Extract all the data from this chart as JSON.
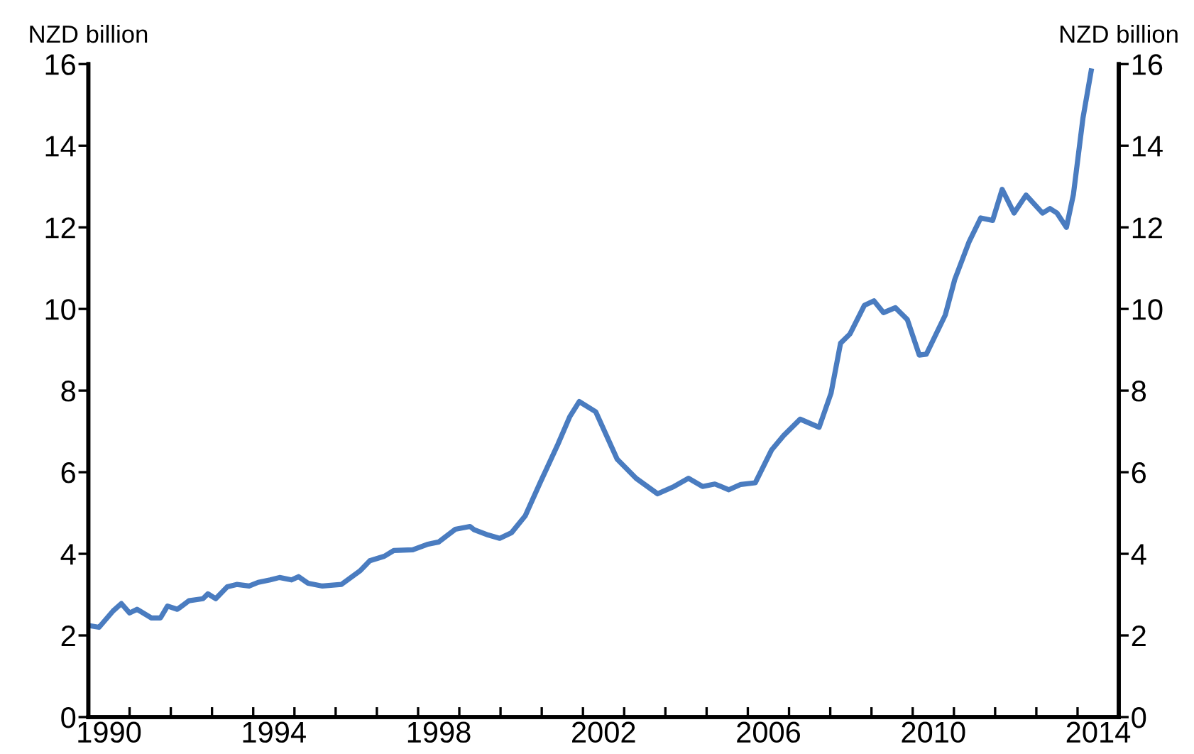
{
  "chart_data": {
    "type": "line",
    "ylabel": "NZD billion",
    "y2label": "NZD billion",
    "series": [
      {
        "color": "#4a7cc0",
        "x": [
          1990.03,
          1990.26,
          1990.6,
          1990.8,
          1991.0,
          1991.18,
          1991.53,
          1991.75,
          1991.92,
          1992.16,
          1992.44,
          1992.78,
          1992.9,
          1993.09,
          1993.37,
          1993.6,
          1993.9,
          1994.12,
          1994.41,
          1994.64,
          1994.93,
          1995.1,
          1995.33,
          1995.68,
          1996.14,
          1996.6,
          1996.83,
          1997.18,
          1997.41,
          1997.87,
          1998.22,
          1998.5,
          1998.9,
          1999.26,
          1999.36,
          1999.7,
          1999.98,
          2000.27,
          2000.6,
          2000.96,
          2001.39,
          2001.68,
          2001.91,
          2002.31,
          2002.83,
          2003.29,
          2003.81,
          2004.21,
          2004.56,
          2004.9,
          2005.2,
          2005.54,
          2005.83,
          2006.18,
          2006.58,
          2006.87,
          2007.27,
          2007.73,
          2008.02,
          2008.25,
          2008.48,
          2008.83,
          2009.06,
          2009.29,
          2009.58,
          2009.87,
          2010.16,
          2010.33,
          2010.79,
          2011.02,
          2011.37,
          2011.65,
          2011.94,
          2012.17,
          2012.46,
          2012.75,
          2013.15,
          2013.33,
          2013.5,
          2013.73,
          2013.9,
          2014.13,
          2014.33
        ],
        "values": [
          2.24,
          2.2,
          2.6,
          2.78,
          2.55,
          2.64,
          2.43,
          2.43,
          2.72,
          2.64,
          2.85,
          2.9,
          3.02,
          2.9,
          3.19,
          3.25,
          3.21,
          3.3,
          3.36,
          3.42,
          3.36,
          3.44,
          3.28,
          3.21,
          3.25,
          3.59,
          3.83,
          3.94,
          4.08,
          4.1,
          4.23,
          4.29,
          4.6,
          4.67,
          4.59,
          4.46,
          4.38,
          4.52,
          4.93,
          5.74,
          6.68,
          7.36,
          7.73,
          7.48,
          6.32,
          5.85,
          5.47,
          5.65,
          5.85,
          5.65,
          5.71,
          5.57,
          5.7,
          5.74,
          6.55,
          6.9,
          7.3,
          7.1,
          7.94,
          9.16,
          9.39,
          10.09,
          10.2,
          9.91,
          10.03,
          9.74,
          8.87,
          8.89,
          9.85,
          10.72,
          11.65,
          12.23,
          12.17,
          12.93,
          12.35,
          12.79,
          12.35,
          12.46,
          12.35,
          12.0,
          12.81,
          14.67,
          15.83
        ]
      }
    ],
    "xlim": [
      1990,
      2015
    ],
    "xticks": [
      {
        "value": 1990.5,
        "label": "1990"
      },
      {
        "value": 1994.5,
        "label": "1994"
      },
      {
        "value": 1998.5,
        "label": "1998"
      },
      {
        "value": 2002.5,
        "label": "2002"
      },
      {
        "value": 2006.5,
        "label": "2006"
      },
      {
        "value": 2010.5,
        "label": "2010"
      },
      {
        "value": 2014.5,
        "label": "2014"
      },
      {
        "value": 1991,
        "label": null
      },
      {
        "value": 1992,
        "label": null
      },
      {
        "value": 1993,
        "label": null
      },
      {
        "value": 1994,
        "label": null
      },
      {
        "value": 1995,
        "label": null
      },
      {
        "value": 1996,
        "label": null
      },
      {
        "value": 1997,
        "label": null
      },
      {
        "value": 1998,
        "label": null
      },
      {
        "value": 1999,
        "label": null
      },
      {
        "value": 2000,
        "label": null
      },
      {
        "value": 2001,
        "label": null
      },
      {
        "value": 2002,
        "label": null
      },
      {
        "value": 2003,
        "label": null
      },
      {
        "value": 2004,
        "label": null
      },
      {
        "value": 2005,
        "label": null
      },
      {
        "value": 2006,
        "label": null
      },
      {
        "value": 2007,
        "label": null
      },
      {
        "value": 2008,
        "label": null
      },
      {
        "value": 2009,
        "label": null
      },
      {
        "value": 2010,
        "label": null
      },
      {
        "value": 2011,
        "label": null
      },
      {
        "value": 2012,
        "label": null
      },
      {
        "value": 2013,
        "label": null
      },
      {
        "value": 2014,
        "label": null
      }
    ],
    "ylim": [
      0,
      16
    ],
    "yticks": [
      0,
      2,
      4,
      6,
      8,
      10,
      12,
      14,
      16
    ],
    "y2lim": [
      0,
      16
    ],
    "y2ticks": [
      0,
      2,
      4,
      6,
      8,
      10,
      12,
      14,
      16
    ],
    "grid": false,
    "marker": "none",
    "line_style": "solid"
  }
}
